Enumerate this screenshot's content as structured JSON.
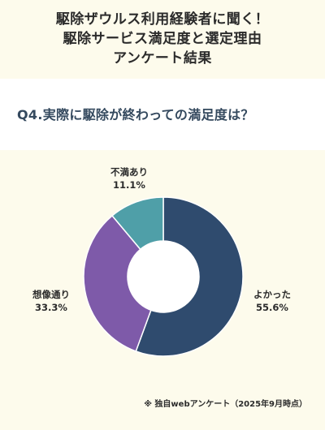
{
  "header": {
    "lines": [
      "駆除ザウルス利用経験者に聞く！",
      "駆除サービス満足度と選定理由",
      "アンケート結果"
    ]
  },
  "question": "Q4.実際に駆除が終わっての満足度は？",
  "note": "※ 独自webアンケート（2025年9月時点）",
  "chart_data": {
    "type": "pie",
    "donut": true,
    "categories": [
      "よかった",
      "想像通り",
      "不満あり"
    ],
    "values": [
      55.6,
      33.3,
      11.1
    ],
    "labels": [
      "55.6%",
      "33.3%",
      "11.1%"
    ],
    "colors": [
      "#2f4b6e",
      "#7e5aa9",
      "#4f9fa8"
    ],
    "title": "",
    "legend": "none"
  }
}
